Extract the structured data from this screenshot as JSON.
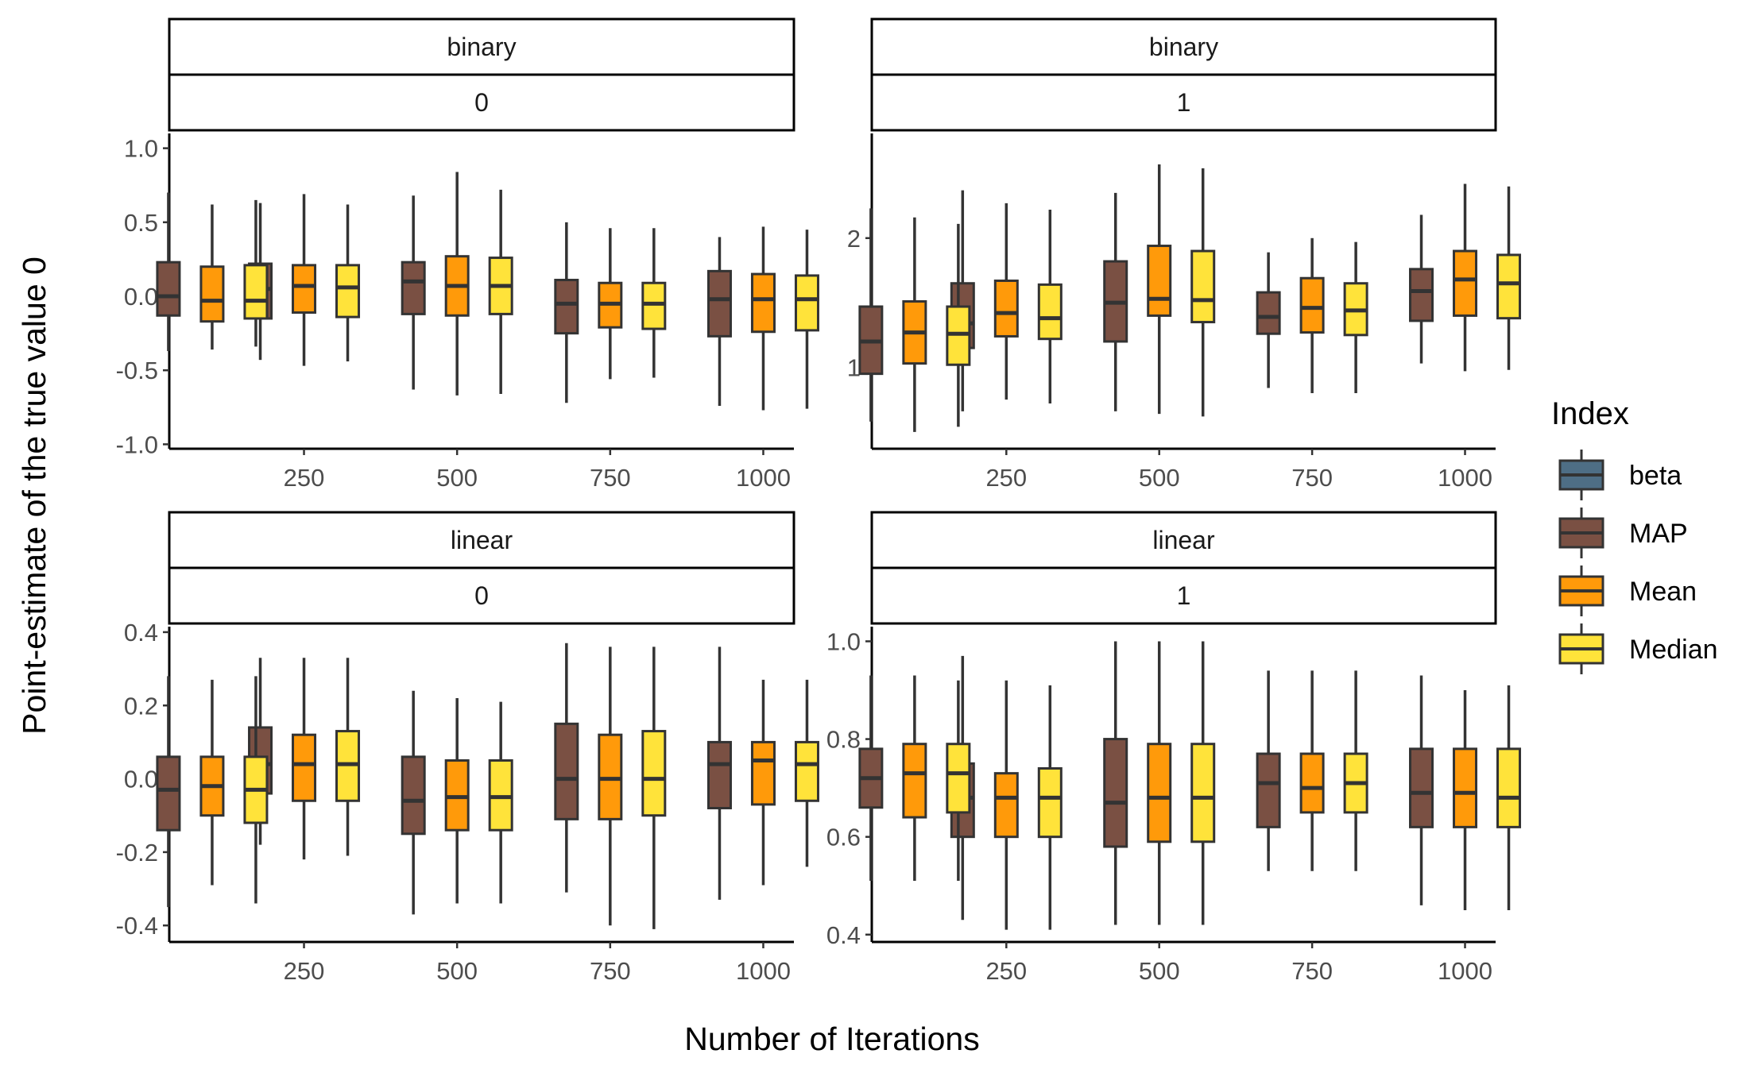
{
  "chart_data": {
    "type": "boxplot",
    "facet_layout": "2x2 grid",
    "xlabel": "Number of Iterations",
    "ylabel": "Point-estimate of the true value 0",
    "legend": {
      "title": "Index",
      "position": "right",
      "entries": [
        {
          "name": "beta",
          "color": "#4e6e85"
        },
        {
          "name": "MAP",
          "color": "#7a5043"
        },
        {
          "name": "Mean",
          "color": "#ff9a0a"
        },
        {
          "name": "Median",
          "color": "#ffe33a"
        }
      ]
    },
    "x_categories": [
      100,
      250,
      500,
      750,
      1000
    ],
    "x_ticks": [
      "250",
      "500",
      "750",
      "1000"
    ],
    "x_domain": [
      30,
      1050
    ],
    "grid": false,
    "panels": [
      {
        "strip_top": "binary",
        "strip_bottom": "0",
        "ylim": [
          -1.03,
          1.1
        ],
        "y_ticks": [
          "-1.0",
          "-0.5",
          "0.0",
          "0.5",
          "1.0"
        ],
        "y_tick_values": [
          -1.0,
          -0.5,
          0.0,
          0.5,
          1.0
        ],
        "series": [
          {
            "name": "MAP",
            "boxes": [
              {
                "x": 100,
                "min": -0.37,
                "q1": -0.13,
                "median": 0.0,
                "q3": 0.23,
                "max": 0.7
              },
              {
                "x": 250,
                "min": -0.43,
                "q1": -0.15,
                "median": 0.05,
                "q3": 0.22,
                "max": 0.63
              },
              {
                "x": 500,
                "min": -0.63,
                "q1": -0.12,
                "median": 0.1,
                "q3": 0.23,
                "max": 0.68
              },
              {
                "x": 750,
                "min": -0.72,
                "q1": -0.25,
                "median": -0.05,
                "q3": 0.11,
                "max": 0.5
              },
              {
                "x": 1000,
                "min": -0.74,
                "q1": -0.27,
                "median": -0.02,
                "q3": 0.17,
                "max": 0.4
              }
            ]
          },
          {
            "name": "Mean",
            "boxes": [
              {
                "x": 100,
                "min": -0.36,
                "q1": -0.17,
                "median": -0.03,
                "q3": 0.2,
                "max": 0.62
              },
              {
                "x": 250,
                "min": -0.47,
                "q1": -0.11,
                "median": 0.07,
                "q3": 0.21,
                "max": 0.69
              },
              {
                "x": 500,
                "min": -0.67,
                "q1": -0.13,
                "median": 0.07,
                "q3": 0.27,
                "max": 0.84
              },
              {
                "x": 750,
                "min": -0.56,
                "q1": -0.21,
                "median": -0.05,
                "q3": 0.09,
                "max": 0.46
              },
              {
                "x": 1000,
                "min": -0.77,
                "q1": -0.24,
                "median": -0.02,
                "q3": 0.15,
                "max": 0.47
              }
            ]
          },
          {
            "name": "Median",
            "boxes": [
              {
                "x": 100,
                "min": -0.34,
                "q1": -0.15,
                "median": -0.03,
                "q3": 0.21,
                "max": 0.65
              },
              {
                "x": 250,
                "min": -0.44,
                "q1": -0.14,
                "median": 0.06,
                "q3": 0.21,
                "max": 0.62
              },
              {
                "x": 500,
                "min": -0.66,
                "q1": -0.12,
                "median": 0.07,
                "q3": 0.26,
                "max": 0.72
              },
              {
                "x": 750,
                "min": -0.55,
                "q1": -0.22,
                "median": -0.05,
                "q3": 0.09,
                "max": 0.46
              },
              {
                "x": 1000,
                "min": -0.76,
                "q1": -0.23,
                "median": -0.02,
                "q3": 0.14,
                "max": 0.45
              }
            ]
          }
        ]
      },
      {
        "strip_top": "binary",
        "strip_bottom": "1",
        "ylim": [
          0.37,
          2.81
        ],
        "y_ticks": [
          "1",
          "2"
        ],
        "y_tick_values": [
          1,
          2
        ],
        "series": [
          {
            "name": "MAP",
            "boxes": [
              {
                "x": 100,
                "min": 0.58,
                "q1": 0.95,
                "median": 1.2,
                "q3": 1.47,
                "max": 2.23
              },
              {
                "x": 250,
                "min": 0.66,
                "q1": 1.15,
                "median": 1.34,
                "q3": 1.65,
                "max": 2.37
              },
              {
                "x": 500,
                "min": 0.66,
                "q1": 1.2,
                "median": 1.5,
                "q3": 1.82,
                "max": 2.35
              },
              {
                "x": 750,
                "min": 0.84,
                "q1": 1.26,
                "median": 1.39,
                "q3": 1.58,
                "max": 1.89
              },
              {
                "x": 1000,
                "min": 1.03,
                "q1": 1.36,
                "median": 1.59,
                "q3": 1.76,
                "max": 2.18
              }
            ]
          },
          {
            "name": "Mean",
            "boxes": [
              {
                "x": 100,
                "min": 0.5,
                "q1": 1.03,
                "median": 1.27,
                "q3": 1.51,
                "max": 2.16
              },
              {
                "x": 250,
                "min": 0.75,
                "q1": 1.24,
                "median": 1.42,
                "q3": 1.67,
                "max": 2.27
              },
              {
                "x": 500,
                "min": 0.64,
                "q1": 1.4,
                "median": 1.53,
                "q3": 1.94,
                "max": 2.57
              },
              {
                "x": 750,
                "min": 0.8,
                "q1": 1.27,
                "median": 1.46,
                "q3": 1.69,
                "max": 2.0
              },
              {
                "x": 1000,
                "min": 0.97,
                "q1": 1.4,
                "median": 1.68,
                "q3": 1.9,
                "max": 2.42
              }
            ]
          },
          {
            "name": "Median",
            "boxes": [
              {
                "x": 100,
                "min": 0.54,
                "q1": 1.02,
                "median": 1.26,
                "q3": 1.47,
                "max": 2.11
              },
              {
                "x": 250,
                "min": 0.72,
                "q1": 1.22,
                "median": 1.38,
                "q3": 1.64,
                "max": 2.22
              },
              {
                "x": 500,
                "min": 0.62,
                "q1": 1.35,
                "median": 1.52,
                "q3": 1.9,
                "max": 2.54
              },
              {
                "x": 750,
                "min": 0.8,
                "q1": 1.25,
                "median": 1.44,
                "q3": 1.65,
                "max": 1.97
              },
              {
                "x": 1000,
                "min": 0.98,
                "q1": 1.38,
                "median": 1.65,
                "q3": 1.87,
                "max": 2.4
              }
            ]
          }
        ]
      },
      {
        "strip_top": "linear",
        "strip_bottom": "0",
        "ylim": [
          -0.445,
          0.415
        ],
        "y_ticks": [
          "-0.4",
          "-0.2",
          "0.0",
          "0.2",
          "0.4"
        ],
        "y_tick_values": [
          -0.4,
          -0.2,
          0.0,
          0.2,
          0.4
        ],
        "series": [
          {
            "name": "MAP",
            "boxes": [
              {
                "x": 100,
                "min": -0.35,
                "q1": -0.14,
                "median": -0.03,
                "q3": 0.06,
                "max": 0.28
              },
              {
                "x": 250,
                "min": -0.18,
                "q1": -0.04,
                "median": 0.04,
                "q3": 0.14,
                "max": 0.33
              },
              {
                "x": 500,
                "min": -0.37,
                "q1": -0.15,
                "median": -0.06,
                "q3": 0.06,
                "max": 0.24
              },
              {
                "x": 750,
                "min": -0.31,
                "q1": -0.11,
                "median": 0.0,
                "q3": 0.15,
                "max": 0.37
              },
              {
                "x": 1000,
                "min": -0.33,
                "q1": -0.08,
                "median": 0.04,
                "q3": 0.1,
                "max": 0.36
              }
            ]
          },
          {
            "name": "Mean",
            "boxes": [
              {
                "x": 100,
                "min": -0.29,
                "q1": -0.1,
                "median": -0.02,
                "q3": 0.06,
                "max": 0.27
              },
              {
                "x": 250,
                "min": -0.22,
                "q1": -0.06,
                "median": 0.04,
                "q3": 0.12,
                "max": 0.33
              },
              {
                "x": 500,
                "min": -0.34,
                "q1": -0.14,
                "median": -0.05,
                "q3": 0.05,
                "max": 0.22
              },
              {
                "x": 750,
                "min": -0.4,
                "q1": -0.11,
                "median": 0.0,
                "q3": 0.12,
                "max": 0.36
              },
              {
                "x": 1000,
                "min": -0.29,
                "q1": -0.07,
                "median": 0.05,
                "q3": 0.1,
                "max": 0.27
              }
            ]
          },
          {
            "name": "Median",
            "boxes": [
              {
                "x": 100,
                "min": -0.34,
                "q1": -0.12,
                "median": -0.03,
                "q3": 0.06,
                "max": 0.28
              },
              {
                "x": 250,
                "min": -0.21,
                "q1": -0.06,
                "median": 0.04,
                "q3": 0.13,
                "max": 0.33
              },
              {
                "x": 500,
                "min": -0.34,
                "q1": -0.14,
                "median": -0.05,
                "q3": 0.05,
                "max": 0.21
              },
              {
                "x": 750,
                "min": -0.41,
                "q1": -0.1,
                "median": 0.0,
                "q3": 0.13,
                "max": 0.36
              },
              {
                "x": 1000,
                "min": -0.24,
                "q1": -0.06,
                "median": 0.04,
                "q3": 0.1,
                "max": 0.27
              }
            ]
          }
        ]
      },
      {
        "strip_top": "linear",
        "strip_bottom": "1",
        "ylim": [
          0.385,
          1.03
        ],
        "y_ticks": [
          "0.4",
          "0.6",
          "0.8",
          "1.0"
        ],
        "y_tick_values": [
          0.4,
          0.6,
          0.8,
          1.0
        ],
        "series": [
          {
            "name": "MAP",
            "boxes": [
              {
                "x": 100,
                "min": 0.51,
                "q1": 0.66,
                "median": 0.72,
                "q3": 0.78,
                "max": 0.93
              },
              {
                "x": 250,
                "min": 0.43,
                "q1": 0.6,
                "median": 0.68,
                "q3": 0.75,
                "max": 0.97
              },
              {
                "x": 500,
                "min": 0.42,
                "q1": 0.58,
                "median": 0.67,
                "q3": 0.8,
                "max": 1.0
              },
              {
                "x": 750,
                "min": 0.53,
                "q1": 0.62,
                "median": 0.71,
                "q3": 0.77,
                "max": 0.94
              },
              {
                "x": 1000,
                "min": 0.46,
                "q1": 0.62,
                "median": 0.69,
                "q3": 0.78,
                "max": 0.93
              }
            ]
          },
          {
            "name": "Mean",
            "boxes": [
              {
                "x": 100,
                "min": 0.51,
                "q1": 0.64,
                "median": 0.73,
                "q3": 0.79,
                "max": 0.93
              },
              {
                "x": 250,
                "min": 0.41,
                "q1": 0.6,
                "median": 0.68,
                "q3": 0.73,
                "max": 0.92
              },
              {
                "x": 500,
                "min": 0.42,
                "q1": 0.59,
                "median": 0.68,
                "q3": 0.79,
                "max": 1.0
              },
              {
                "x": 750,
                "min": 0.53,
                "q1": 0.65,
                "median": 0.7,
                "q3": 0.77,
                "max": 0.94
              },
              {
                "x": 1000,
                "min": 0.45,
                "q1": 0.62,
                "median": 0.69,
                "q3": 0.78,
                "max": 0.9
              }
            ]
          },
          {
            "name": "Median",
            "boxes": [
              {
                "x": 100,
                "min": 0.51,
                "q1": 0.65,
                "median": 0.73,
                "q3": 0.79,
                "max": 0.92
              },
              {
                "x": 250,
                "min": 0.41,
                "q1": 0.6,
                "median": 0.68,
                "q3": 0.74,
                "max": 0.91
              },
              {
                "x": 500,
                "min": 0.42,
                "q1": 0.59,
                "median": 0.68,
                "q3": 0.79,
                "max": 1.0
              },
              {
                "x": 750,
                "min": 0.53,
                "q1": 0.65,
                "median": 0.71,
                "q3": 0.77,
                "max": 0.94
              },
              {
                "x": 1000,
                "min": 0.45,
                "q1": 0.62,
                "median": 0.68,
                "q3": 0.78,
                "max": 0.91
              }
            ]
          }
        ]
      }
    ]
  }
}
